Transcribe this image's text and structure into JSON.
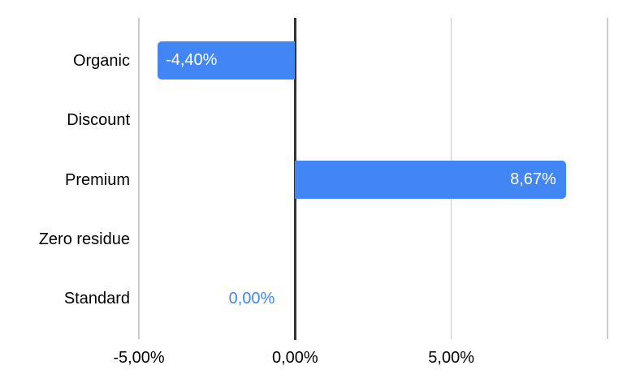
{
  "chart_data": {
    "type": "bar",
    "orientation": "horizontal",
    "title": "",
    "categories": [
      "Organic",
      "Discount",
      "Premium",
      "Zero residue",
      "Standard"
    ],
    "values": [
      -4.4,
      null,
      8.67,
      null,
      0
    ],
    "data_labels": [
      "-4,40%",
      "",
      "8,67%",
      "",
      "0,00%"
    ],
    "x_ticks": [
      {
        "value": -5,
        "label": "-5,00%"
      },
      {
        "value": 0,
        "label": "0,00%"
      },
      {
        "value": 5,
        "label": "5,00%"
      },
      {
        "value": 10,
        "label": ""
      }
    ],
    "xlim": [
      -5,
      10
    ],
    "grid": "vertical-only",
    "legend": "none",
    "decimal_separator": ",",
    "colors": {
      "bar": "#4285f4",
      "zero_value_label": "#4285f4",
      "axis_line": "#333333",
      "gridline": "#cccccc",
      "text": "#000000",
      "background": "#ffffff"
    }
  }
}
